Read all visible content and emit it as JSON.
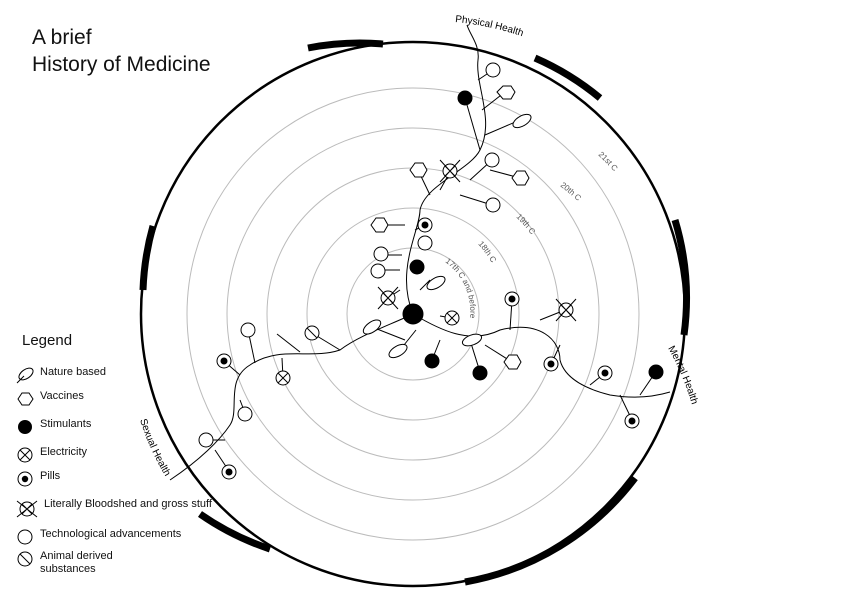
{
  "title": {
    "line1": "A brief",
    "line2": "History of Medicine"
  },
  "categories": {
    "top": "Physical Health",
    "right": "Mental Health",
    "left": "Sexual Health"
  },
  "rings": [
    "17th C and before",
    "18th C",
    "19th C",
    "20th C",
    "21st C"
  ],
  "legend": {
    "heading": "Legend",
    "items": [
      {
        "icon": "leaf-icon",
        "label": "Nature  based"
      },
      {
        "icon": "hexagon-icon",
        "label": "Vaccines"
      },
      {
        "icon": "filled-circle-icon",
        "label": "Stimulants"
      },
      {
        "icon": "crossed-circle-icon",
        "label": "Electricity"
      },
      {
        "icon": "dotted-circle-icon",
        "label": "Pills"
      },
      {
        "icon": "crossed-lined-circle-icon",
        "label": "Literally Bloodshed and gross stuff"
      },
      {
        "icon": "open-circle-icon",
        "label": "Technological advancements"
      },
      {
        "icon": "slashed-circle-icon",
        "label": "Animal derived\nsubstances"
      }
    ]
  },
  "colors": {
    "ink": "#000000",
    "ring": "#bbbbbb",
    "background": "#ffffff"
  }
}
